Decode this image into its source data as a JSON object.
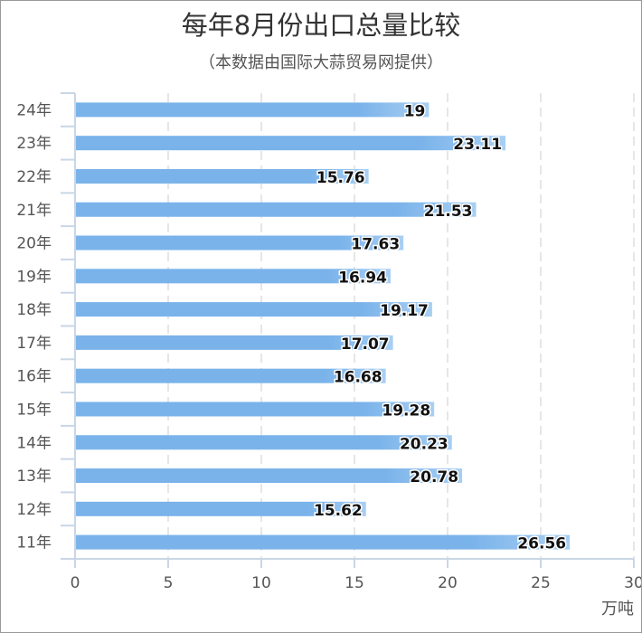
{
  "chart_data": {
    "type": "bar",
    "orientation": "horizontal",
    "title": "每年8月份出口总量比较",
    "subtitle": "（本数据由国际大蒜贸易网提供）",
    "categories": [
      "24年",
      "23年",
      "22年",
      "21年",
      "20年",
      "19年",
      "18年",
      "17年",
      "16年",
      "15年",
      "14年",
      "13年",
      "12年",
      "11年"
    ],
    "values": [
      19,
      23.11,
      15.76,
      21.53,
      17.63,
      16.94,
      19.17,
      17.07,
      16.68,
      19.28,
      20.23,
      20.78,
      15.62,
      26.56
    ],
    "xlabel": "万吨",
    "xlim": [
      0,
      30
    ],
    "xticks": [
      0,
      5,
      10,
      15,
      20,
      25,
      30
    ],
    "grid": true,
    "bar_color": "#7ab3ea",
    "data_labels": true
  }
}
